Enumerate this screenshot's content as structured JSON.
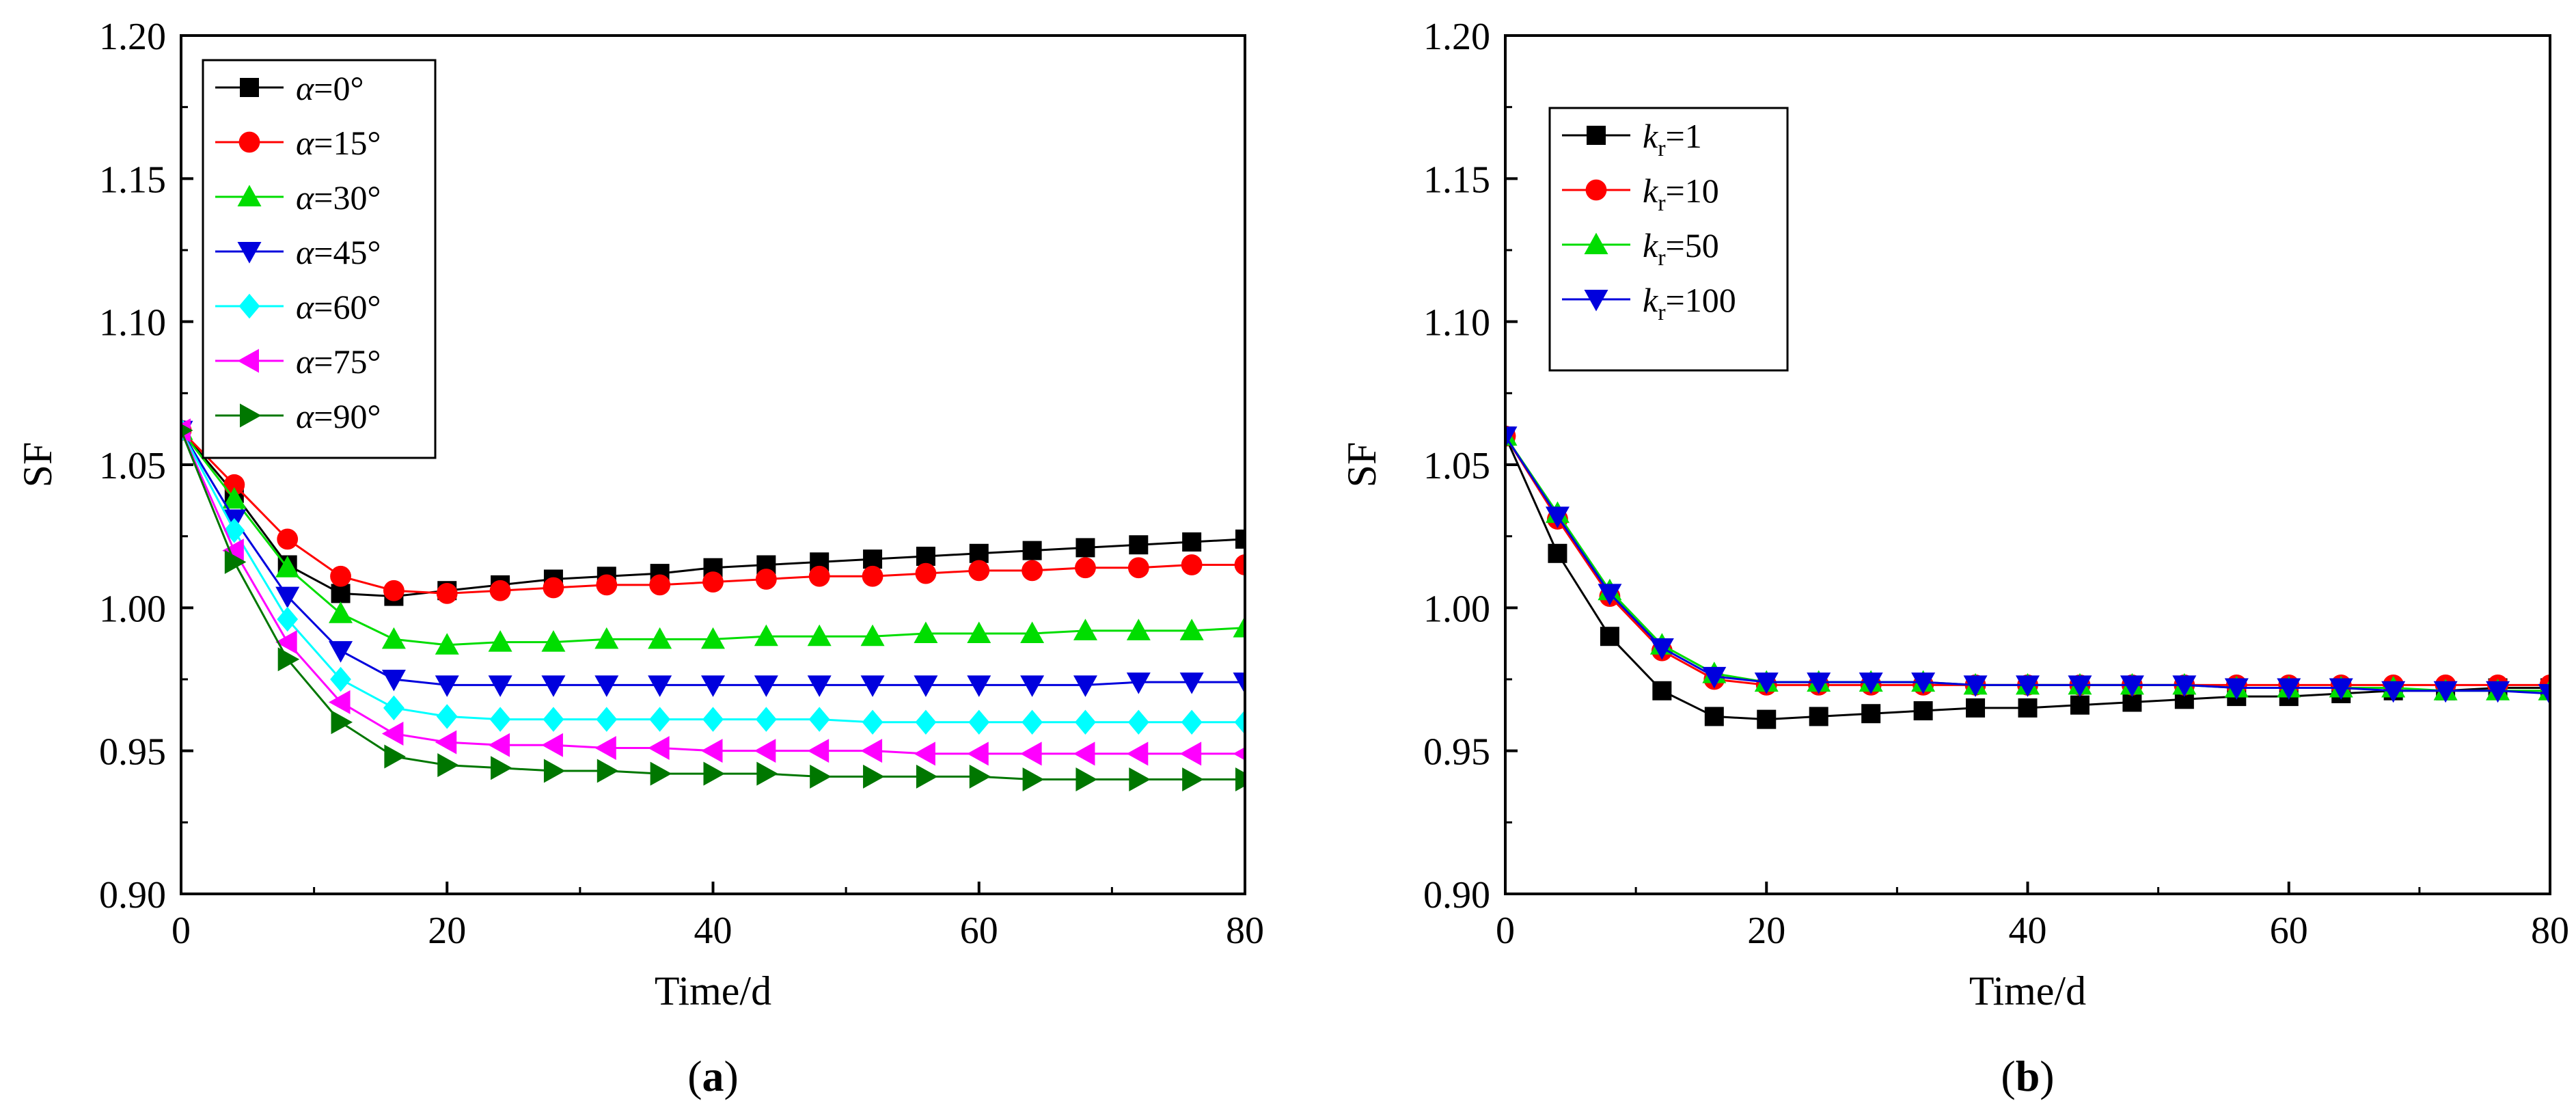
{
  "chart_data": [
    {
      "type": "line",
      "panel_label": "a",
      "xlabel": "Time/d",
      "ylabel": "SF",
      "xlim": [
        0,
        80
      ],
      "ylim": [
        0.9,
        1.2
      ],
      "xticks": [
        0,
        20,
        40,
        60,
        80
      ],
      "xtick_labels": [
        "0",
        "20",
        "40",
        "60",
        "80"
      ],
      "yticks": [
        0.9,
        0.95,
        1.0,
        1.05,
        1.1,
        1.15,
        1.2
      ],
      "ytick_labels": [
        "0.90",
        "0.95",
        "1.00",
        "1.05",
        "1.10",
        "1.15",
        "1.20"
      ],
      "grid": false,
      "legend_position": "top-left",
      "x": [
        0,
        4,
        8,
        12,
        16,
        20,
        24,
        28,
        32,
        36,
        40,
        44,
        48,
        52,
        56,
        60,
        64,
        68,
        72,
        76,
        80
      ],
      "series": [
        {
          "name_var": "α",
          "name_sub": "",
          "name_rest": "=0°",
          "color": "#000000",
          "marker": "square",
          "values": [
            1.062,
            1.04,
            1.015,
            1.005,
            1.004,
            1.006,
            1.008,
            1.01,
            1.011,
            1.012,
            1.014,
            1.015,
            1.016,
            1.017,
            1.018,
            1.019,
            1.02,
            1.021,
            1.022,
            1.023,
            1.024
          ]
        },
        {
          "name_var": "α",
          "name_sub": "",
          "name_rest": "=15°",
          "color": "#ff0000",
          "marker": "circle",
          "values": [
            1.062,
            1.043,
            1.024,
            1.011,
            1.006,
            1.005,
            1.006,
            1.007,
            1.008,
            1.008,
            1.009,
            1.01,
            1.011,
            1.011,
            1.012,
            1.013,
            1.013,
            1.014,
            1.014,
            1.015,
            1.015
          ]
        },
        {
          "name_var": "α",
          "name_sub": "",
          "name_rest": "=30°",
          "color": "#00dd00",
          "marker": "triangle-up",
          "values": [
            1.062,
            1.038,
            1.014,
            0.998,
            0.989,
            0.987,
            0.988,
            0.988,
            0.989,
            0.989,
            0.989,
            0.99,
            0.99,
            0.99,
            0.991,
            0.991,
            0.991,
            0.992,
            0.992,
            0.992,
            0.993
          ]
        },
        {
          "name_var": "α",
          "name_sub": "",
          "name_rest": "=45°",
          "color": "#0000dd",
          "marker": "triangle-down",
          "values": [
            1.062,
            1.031,
            1.004,
            0.985,
            0.975,
            0.973,
            0.973,
            0.973,
            0.973,
            0.973,
            0.973,
            0.973,
            0.973,
            0.973,
            0.973,
            0.973,
            0.973,
            0.973,
            0.974,
            0.974,
            0.974
          ]
        },
        {
          "name_var": "α",
          "name_sub": "",
          "name_rest": "=60°",
          "color": "#00ffff",
          "marker": "diamond",
          "values": [
            1.062,
            1.027,
            0.996,
            0.975,
            0.965,
            0.962,
            0.961,
            0.961,
            0.961,
            0.961,
            0.961,
            0.961,
            0.961,
            0.96,
            0.96,
            0.96,
            0.96,
            0.96,
            0.96,
            0.96,
            0.96
          ]
        },
        {
          "name_var": "α",
          "name_sub": "",
          "name_rest": "=75°",
          "color": "#ff00ff",
          "marker": "triangle-left",
          "values": [
            1.062,
            1.02,
            0.988,
            0.967,
            0.956,
            0.953,
            0.952,
            0.952,
            0.951,
            0.951,
            0.95,
            0.95,
            0.95,
            0.95,
            0.949,
            0.949,
            0.949,
            0.949,
            0.949,
            0.949,
            0.949
          ]
        },
        {
          "name_var": "α",
          "name_sub": "",
          "name_rest": "=90°",
          "color": "#007700",
          "marker": "triangle-right",
          "values": [
            1.062,
            1.016,
            0.982,
            0.96,
            0.948,
            0.945,
            0.944,
            0.943,
            0.943,
            0.942,
            0.942,
            0.942,
            0.941,
            0.941,
            0.941,
            0.941,
            0.94,
            0.94,
            0.94,
            0.94,
            0.94
          ]
        }
      ]
    },
    {
      "type": "line",
      "panel_label": "b",
      "xlabel": "Time/d",
      "ylabel": "SF",
      "xlim": [
        0,
        80
      ],
      "ylim": [
        0.9,
        1.2
      ],
      "xticks": [
        0,
        20,
        40,
        60,
        80
      ],
      "xtick_labels": [
        "0",
        "20",
        "40",
        "60",
        "80"
      ],
      "yticks": [
        0.9,
        0.95,
        1.0,
        1.05,
        1.1,
        1.15,
        1.2
      ],
      "ytick_labels": [
        "0.90",
        "0.95",
        "1.00",
        "1.05",
        "1.10",
        "1.15",
        "1.20"
      ],
      "grid": false,
      "legend_position": "top-left",
      "x": [
        0,
        4,
        8,
        12,
        16,
        20,
        24,
        28,
        32,
        36,
        40,
        44,
        48,
        52,
        56,
        60,
        64,
        68,
        72,
        76,
        80
      ],
      "series": [
        {
          "name_var": "k",
          "name_sub": "r",
          "name_rest": "=1",
          "color": "#000000",
          "marker": "square",
          "values": [
            1.06,
            1.019,
            0.99,
            0.971,
            0.962,
            0.961,
            0.962,
            0.963,
            0.964,
            0.965,
            0.965,
            0.966,
            0.967,
            0.968,
            0.969,
            0.969,
            0.97,
            0.971,
            0.971,
            0.972,
            0.972
          ]
        },
        {
          "name_var": "k",
          "name_sub": "r",
          "name_rest": "=10",
          "color": "#ff0000",
          "marker": "circle",
          "values": [
            1.06,
            1.031,
            1.004,
            0.985,
            0.975,
            0.973,
            0.973,
            0.973,
            0.973,
            0.973,
            0.973,
            0.973,
            0.973,
            0.973,
            0.973,
            0.973,
            0.973,
            0.973,
            0.973,
            0.973,
            0.973
          ]
        },
        {
          "name_var": "k",
          "name_sub": "r",
          "name_rest": "=50",
          "color": "#00dd00",
          "marker": "triangle-up",
          "values": [
            1.06,
            1.033,
            1.006,
            0.987,
            0.977,
            0.974,
            0.974,
            0.974,
            0.974,
            0.973,
            0.973,
            0.973,
            0.973,
            0.973,
            0.972,
            0.972,
            0.972,
            0.972,
            0.971,
            0.971,
            0.971
          ]
        },
        {
          "name_var": "k",
          "name_sub": "r",
          "name_rest": "=100",
          "color": "#0000dd",
          "marker": "triangle-down",
          "values": [
            1.06,
            1.032,
            1.005,
            0.986,
            0.976,
            0.974,
            0.974,
            0.974,
            0.974,
            0.973,
            0.973,
            0.973,
            0.973,
            0.973,
            0.972,
            0.972,
            0.972,
            0.971,
            0.971,
            0.971,
            0.97
          ]
        }
      ]
    }
  ]
}
